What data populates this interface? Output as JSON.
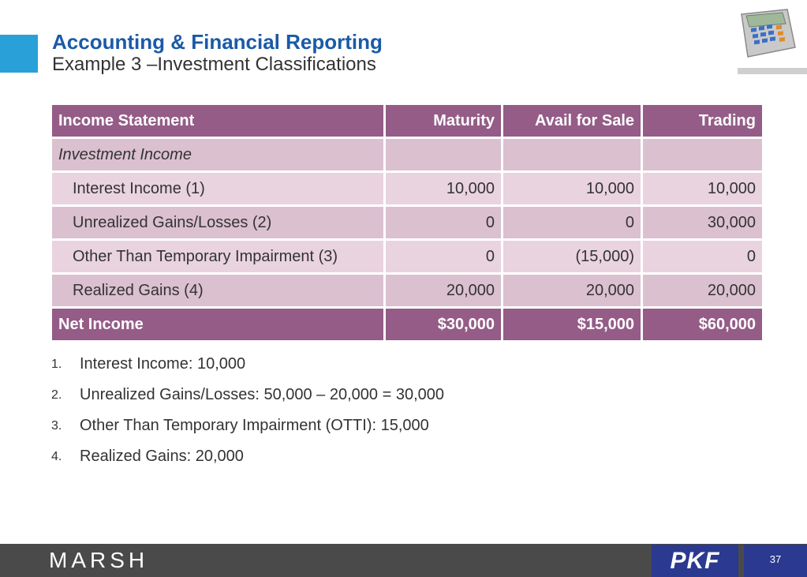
{
  "slide": {
    "title": "Accounting & Financial Reporting",
    "subtitle": "Example 3 –Investment Classifications",
    "page_number": "37"
  },
  "table": {
    "headers": [
      "Income Statement",
      "Maturity",
      "Avail for Sale",
      "Trading"
    ],
    "rows": [
      {
        "label": "Investment Income",
        "values": [
          "",
          "",
          ""
        ]
      },
      {
        "label": "Interest Income (1)",
        "values": [
          "10,000",
          "10,000",
          "10,000"
        ]
      },
      {
        "label": "Unrealized Gains/Losses (2)",
        "values": [
          "0",
          "0",
          "30,000"
        ]
      },
      {
        "label": "Other Than Temporary Impairment (3)",
        "values": [
          "0",
          "(15,000)",
          "0"
        ]
      },
      {
        "label": "Realized Gains (4)",
        "values": [
          "20,000",
          "20,000",
          "20,000"
        ]
      }
    ],
    "total": {
      "label": "Net Income",
      "values": [
        "$30,000",
        "$15,000",
        "$60,000"
      ]
    }
  },
  "notes": [
    {
      "num": "1.",
      "text": "Interest Income: 10,000"
    },
    {
      "num": "2.",
      "text": "Unrealized Gains/Losses: 50,000 – 20,000 = 30,000"
    },
    {
      "num": "3.",
      "text": "Other Than Temporary Impairment (OTTI): 15,000"
    },
    {
      "num": "4.",
      "text": "Realized Gains: 20,000"
    }
  ],
  "footer": {
    "left_logo": "MARSH",
    "right_logo": "PKF"
  },
  "icons": {
    "header_image": "calculator-icon"
  },
  "colors": {
    "accent": "#2aa0d8",
    "title": "#1a5aa8",
    "table_header": "#945c87",
    "table_row": "#e9d3df",
    "footer_bar": "#4a4a4a",
    "pkf_blue": "#2b3990"
  }
}
